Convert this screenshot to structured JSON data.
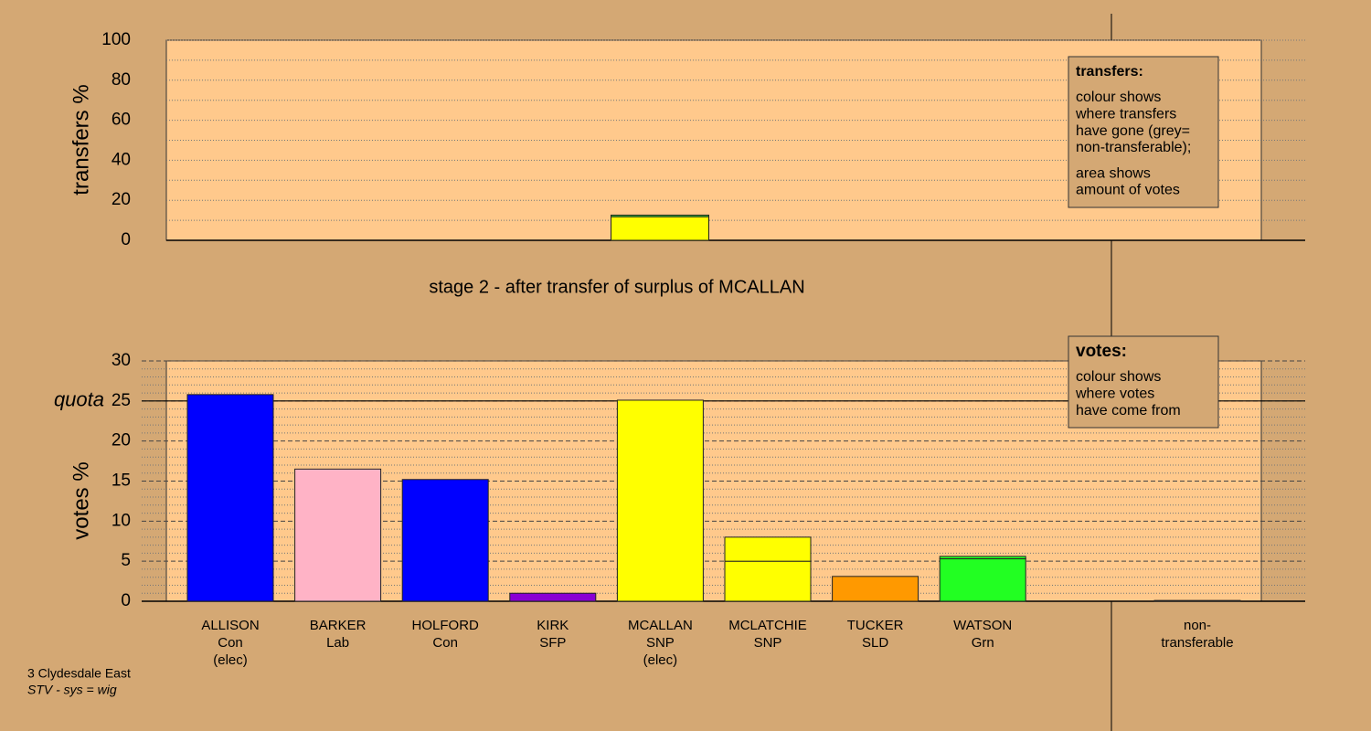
{
  "chart_data": [
    {
      "type": "stacked_bar",
      "ylabel": "transfers %",
      "ylim": [
        0,
        100
      ],
      "yticks": [
        0,
        20,
        40,
        60,
        80,
        100
      ],
      "minor_yticks": [
        10,
        30,
        50,
        70,
        90
      ],
      "bars": [
        [
          {
            "value": 11.8,
            "color": "#ffff00"
          },
          {
            "value": 0.8,
            "color": "#33dd33"
          }
        ]
      ],
      "legend": {
        "title": "transfers:",
        "lines": [
          "colour shows",
          "where transfers",
          "have gone (grey=",
          "non-transferable);",
          "area shows",
          "amount of votes"
        ]
      }
    },
    {
      "type": "stacked_bar",
      "title": "stage 2 - after transfer of surplus of MCALLAN",
      "ylabel": "votes %",
      "ylim": [
        0,
        30
      ],
      "yticks": [
        0,
        5,
        10,
        15,
        20,
        25,
        30
      ],
      "minor_yticks": [
        1,
        2,
        3,
        4,
        6,
        7,
        8,
        9,
        11,
        12,
        13,
        14,
        16,
        17,
        18,
        19,
        21,
        22,
        23,
        24,
        26,
        27,
        28,
        29
      ],
      "quota": {
        "label": "quota",
        "value": 25
      },
      "categories": [
        [
          "ALLISON",
          "Con",
          "(elec)"
        ],
        [
          "BARKER",
          "Lab"
        ],
        [
          "HOLFORD",
          "Con"
        ],
        [
          "KIRK",
          "SFP"
        ],
        [
          "MCALLAN",
          "SNP",
          "(elec)"
        ],
        [
          "MCLATCHIE",
          "SNP"
        ],
        [
          "TUCKER",
          "SLD"
        ],
        [
          "WATSON",
          "Grn"
        ],
        [
          "non-",
          "transferable"
        ]
      ],
      "bars": [
        [
          {
            "value": 25.8,
            "color": "#0000ff"
          }
        ],
        [
          {
            "value": 16.5,
            "color": "#ffb3c6"
          }
        ],
        [
          {
            "value": 15.2,
            "color": "#0000ff"
          }
        ],
        [
          {
            "value": 1.0,
            "color": "#8a00d4"
          }
        ],
        [
          {
            "value": 25.1,
            "color": "#ffff00"
          }
        ],
        [
          {
            "value": 5.0,
            "color": "#ffff00"
          },
          {
            "value": 3.0,
            "color": "#ffff00"
          }
        ],
        [
          {
            "value": 3.1,
            "color": "#ff9900"
          }
        ],
        [
          {
            "value": 5.3,
            "color": "#22ff22"
          },
          {
            "value": 0.3,
            "color": "#22ff22"
          }
        ],
        [
          {
            "value": 0.1,
            "color": "#999999"
          }
        ]
      ],
      "legend": {
        "title": "votes:",
        "lines": [
          "colour shows",
          "where votes",
          "have come from"
        ]
      }
    }
  ],
  "footer": [
    "3 Clydesdale East",
    "STV - sys = wig"
  ]
}
